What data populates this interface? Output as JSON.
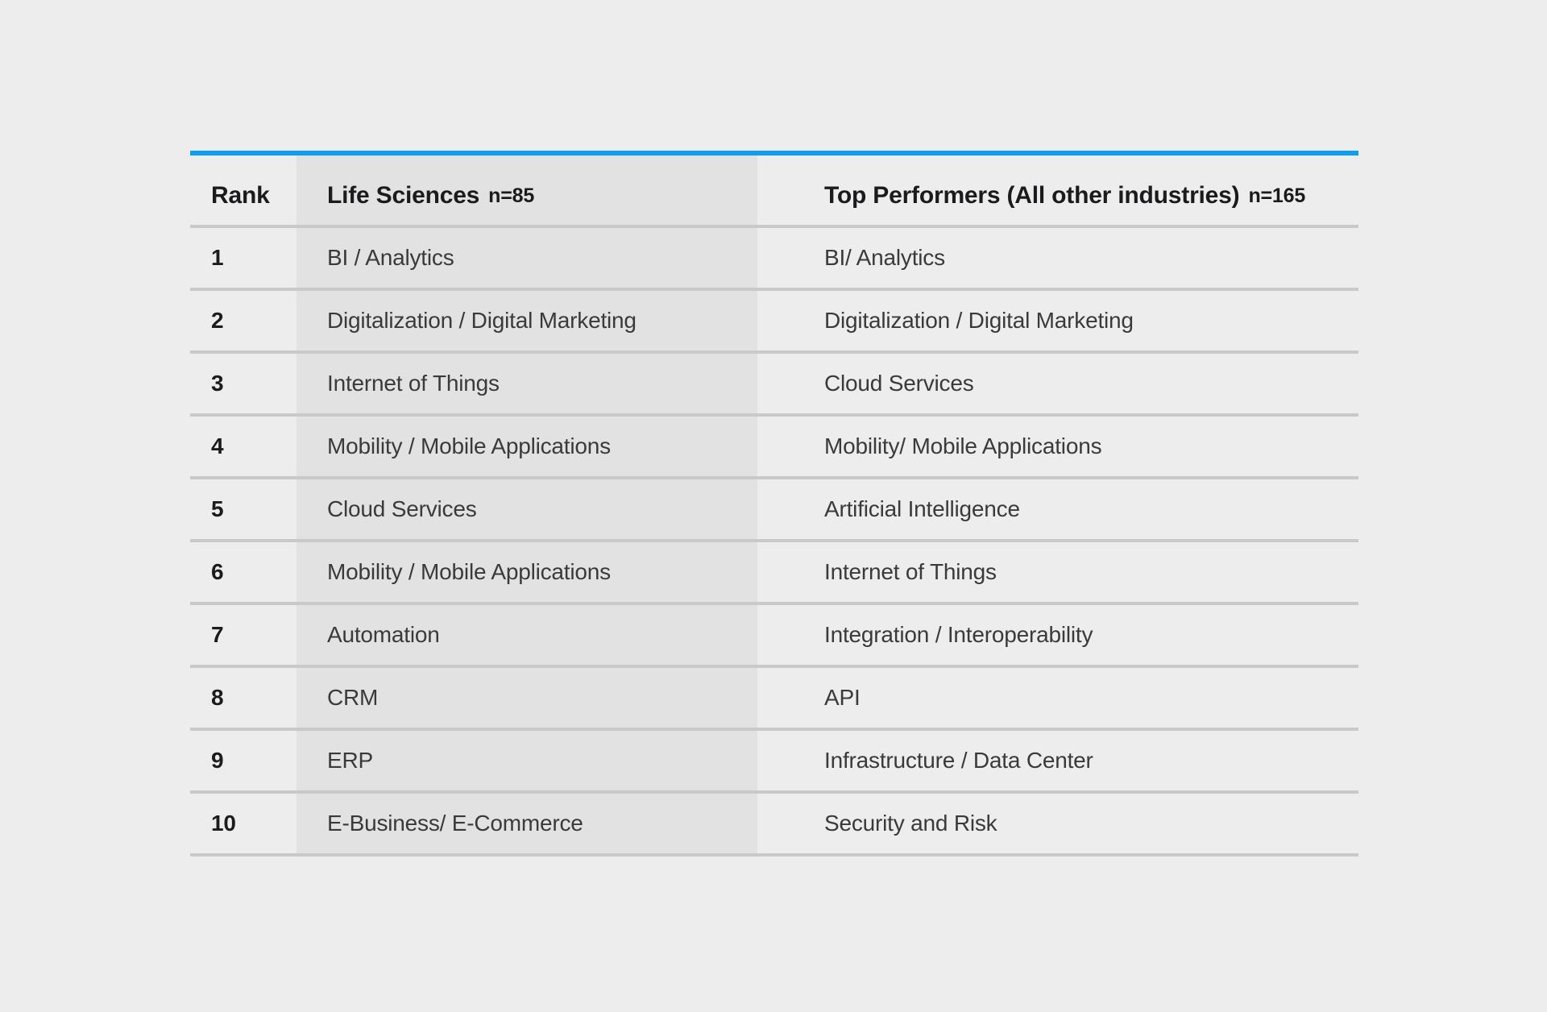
{
  "chart_data": {
    "type": "table",
    "title": "",
    "columns": {
      "rank": {
        "label": "Rank"
      },
      "life_sciences": {
        "label": "Life Sciences",
        "n": "n=85"
      },
      "top_performers": {
        "label": "Top Performers (All other industries)",
        "n": "n=165"
      }
    },
    "rows": [
      {
        "rank": "1",
        "life_sciences": "BI / Analytics",
        "top_performers": "BI/ Analytics"
      },
      {
        "rank": "2",
        "life_sciences": "Digitalization / Digital Marketing",
        "top_performers": "Digitalization / Digital Marketing"
      },
      {
        "rank": "3",
        "life_sciences": "Internet of Things",
        "top_performers": "Cloud Services"
      },
      {
        "rank": "4",
        "life_sciences": "Mobility / Mobile Applications",
        "top_performers": "Mobility/ Mobile Applications"
      },
      {
        "rank": "5",
        "life_sciences": "Cloud Services",
        "top_performers": "Artificial Intelligence"
      },
      {
        "rank": "6",
        "life_sciences": "Mobility / Mobile Applications",
        "top_performers": "Internet of Things"
      },
      {
        "rank": "7",
        "life_sciences": "Automation",
        "top_performers": "Integration / Interoperability"
      },
      {
        "rank": "8",
        "life_sciences": "CRM",
        "top_performers": "API"
      },
      {
        "rank": "9",
        "life_sciences": "ERP",
        "top_performers": "Infrastructure / Data Center"
      },
      {
        "rank": "10",
        "life_sciences": "E-Business/ E-Commerce",
        "top_performers": "Security and Risk"
      }
    ],
    "layout_hints": {
      "accent_bar_position": "top",
      "highlighted_column": "life_sciences",
      "grid": "horizontal-dividers-only"
    },
    "colors": {
      "accent_blue": "#0D9DF2",
      "page_background": "#EDEDED",
      "highlight_column_background": "#E2E2E2",
      "divider": "#C9C9C9",
      "header_text": "#1B1B1E",
      "body_text": "#3A3A3A"
    }
  }
}
